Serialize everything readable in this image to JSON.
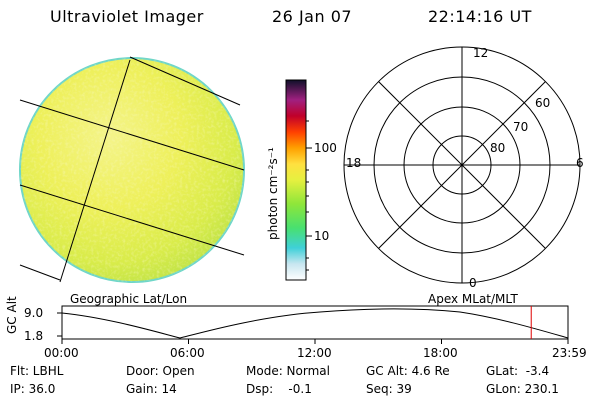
{
  "header": {
    "instrument": "Ultraviolet Imager",
    "date": "26 Jan 07",
    "time": "22:14:16 UT"
  },
  "colorbar": {
    "unit_label": "photon cm⁻²s⁻¹",
    "ticks": [
      "100",
      "10"
    ]
  },
  "image_panel": {
    "caption": "Geographic Lat/Lon"
  },
  "polar_panel": {
    "caption": "Apex MLat/MLT",
    "mlt_labels": {
      "top": "12",
      "bottom": "0",
      "left": "18",
      "right": "6"
    },
    "lat_labels": [
      "60",
      "70",
      "80"
    ]
  },
  "orbit": {
    "ylabel": "GC Alt",
    "y_ticks": [
      "9.0",
      "1.8"
    ],
    "x_ticks": [
      "00:00",
      "06:00",
      "12:00",
      "18:00",
      "23:59"
    ],
    "marker_time_hours": 22.24,
    "marker_color": "#e00000"
  },
  "footer": {
    "rows": [
      [
        "Flt: LBHL",
        "Door: Open",
        "Mode: Normal",
        "GC Alt: 4.6 Re",
        "GLat:  -3.4"
      ],
      [
        "IP: 36.0",
        "Gain: 14",
        "Dsp:    -0.1",
        "Seq: 39",
        "GLon: 230.1"
      ]
    ]
  }
}
